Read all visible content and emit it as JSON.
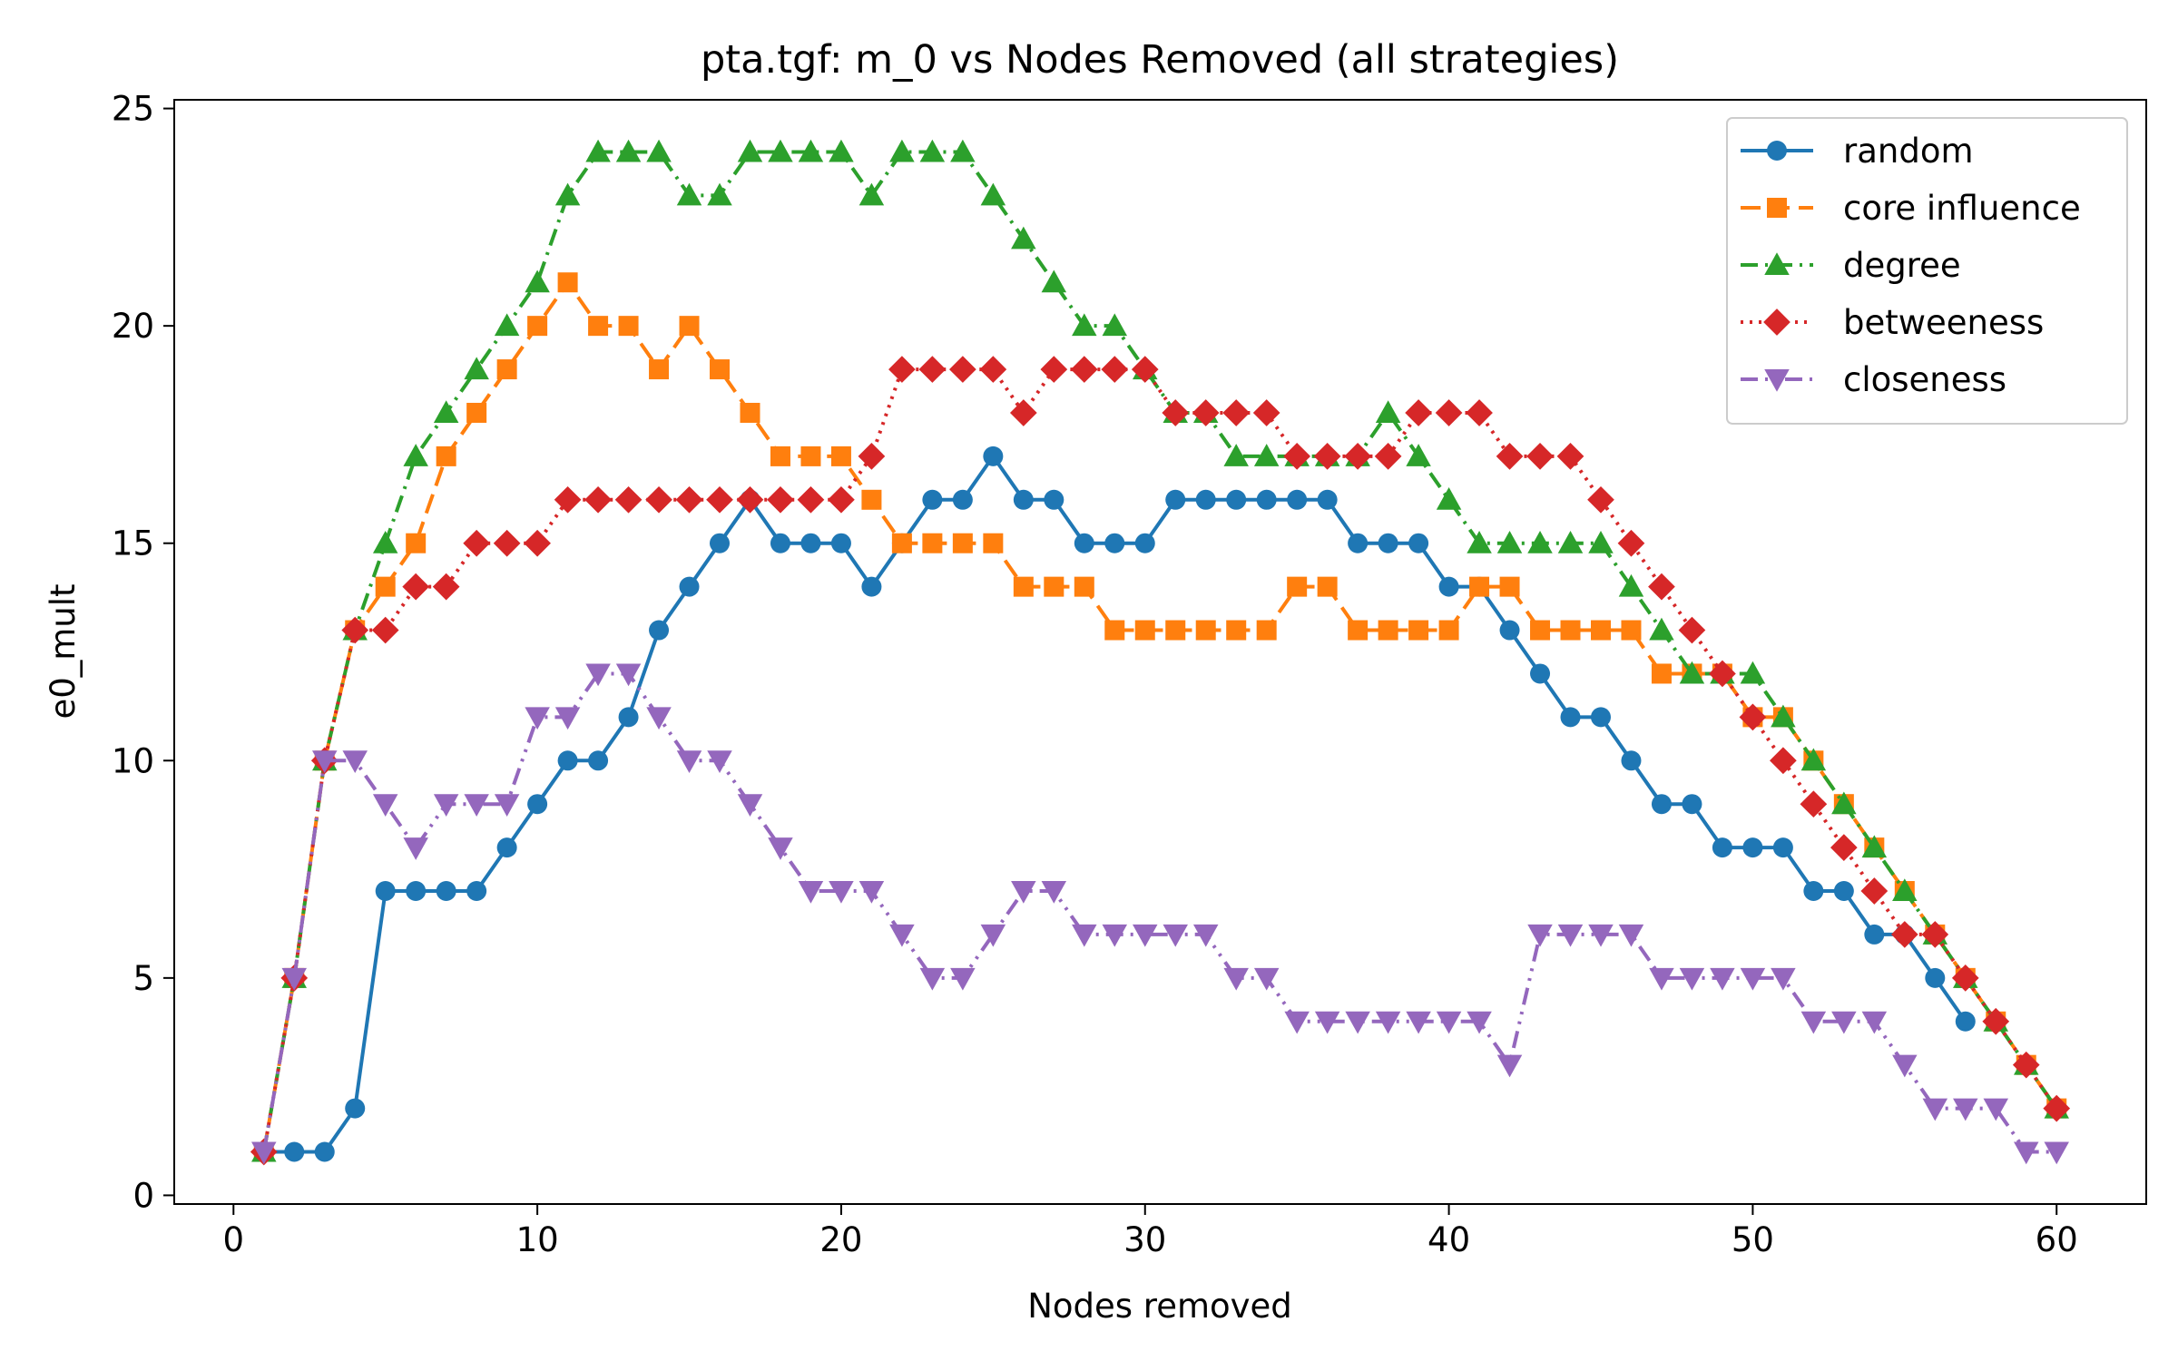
{
  "chart_data": {
    "type": "line",
    "title": "pta.tgf: m_0 vs Nodes Removed (all strategies)",
    "xlabel": "Nodes removed",
    "ylabel": "e0_mult",
    "xlim": [
      -1.95,
      62.95
    ],
    "ylim": [
      -0.2,
      25.2
    ],
    "xticks": [
      0,
      10,
      20,
      30,
      40,
      50,
      60
    ],
    "yticks": [
      0,
      5,
      10,
      15,
      20,
      25
    ],
    "grid": false,
    "legend_position": "top-right",
    "series": [
      {
        "name": "random",
        "color": "#1f77b4",
        "marker": "circle",
        "linestyle": "solid",
        "x": [
          1,
          2,
          3,
          4,
          5,
          6,
          7,
          8,
          9,
          10,
          11,
          12,
          13,
          14,
          15,
          16,
          17,
          18,
          19,
          20,
          21,
          22,
          23,
          24,
          25,
          26,
          27,
          28,
          29,
          30,
          31,
          32,
          33,
          34,
          35,
          36,
          37,
          38,
          39,
          40,
          41,
          42,
          43,
          44,
          45,
          46,
          47,
          48,
          49,
          50,
          51,
          52,
          53,
          54,
          55,
          56,
          57
        ],
        "y": [
          1,
          1,
          1,
          2,
          7,
          7,
          7,
          7,
          8,
          9,
          10,
          10,
          11,
          13,
          14,
          15,
          16,
          15,
          15,
          15,
          14,
          15,
          16,
          16,
          17,
          16,
          16,
          15,
          15,
          15,
          16,
          16,
          16,
          16,
          16,
          16,
          15,
          15,
          15,
          14,
          14,
          13,
          12,
          11,
          11,
          10,
          9,
          9,
          8,
          8,
          8,
          7,
          7,
          6,
          6,
          5,
          4
        ]
      },
      {
        "name": "core influence",
        "color": "#ff7f0e",
        "marker": "square",
        "linestyle": "dashed",
        "x": [
          1,
          2,
          3,
          4,
          5,
          6,
          7,
          8,
          9,
          10,
          11,
          12,
          13,
          14,
          15,
          16,
          17,
          18,
          19,
          20,
          21,
          22,
          23,
          24,
          25,
          26,
          27,
          28,
          29,
          30,
          31,
          32,
          33,
          34,
          35,
          36,
          37,
          38,
          39,
          40,
          41,
          42,
          43,
          44,
          45,
          46,
          47,
          48,
          49,
          50,
          51,
          52,
          53,
          54,
          55,
          56,
          57,
          58,
          59,
          60
        ],
        "y": [
          1,
          5,
          10,
          13,
          14,
          15,
          17,
          18,
          19,
          20,
          21,
          20,
          20,
          19,
          20,
          19,
          18,
          17,
          17,
          17,
          16,
          15,
          15,
          15,
          15,
          14,
          14,
          14,
          13,
          13,
          13,
          13,
          13,
          13,
          14,
          14,
          13,
          13,
          13,
          13,
          14,
          14,
          13,
          13,
          13,
          13,
          12,
          12,
          12,
          11,
          11,
          10,
          9,
          8,
          7,
          6,
          5,
          4,
          3,
          2
        ]
      },
      {
        "name": "degree",
        "color": "#2ca02c",
        "marker": "triangle-up",
        "linestyle": "dashdot",
        "x": [
          1,
          2,
          3,
          4,
          5,
          6,
          7,
          8,
          9,
          10,
          11,
          12,
          13,
          14,
          15,
          16,
          17,
          18,
          19,
          20,
          21,
          22,
          23,
          24,
          25,
          26,
          27,
          28,
          29,
          30,
          31,
          32,
          33,
          34,
          35,
          36,
          37,
          38,
          39,
          40,
          41,
          42,
          43,
          44,
          45,
          46,
          47,
          48,
          49,
          50,
          51,
          52,
          53,
          54,
          55,
          56,
          57,
          58,
          59,
          60
        ],
        "y": [
          1,
          5,
          10,
          13,
          15,
          17,
          18,
          19,
          20,
          21,
          23,
          24,
          24,
          24,
          23,
          23,
          24,
          24,
          24,
          24,
          23,
          24,
          24,
          24,
          23,
          22,
          21,
          20,
          20,
          19,
          18,
          18,
          17,
          17,
          17,
          17,
          17,
          18,
          17,
          16,
          15,
          15,
          15,
          15,
          15,
          14,
          13,
          12,
          12,
          12,
          11,
          10,
          9,
          8,
          7,
          6,
          5,
          4,
          3,
          2
        ]
      },
      {
        "name": "betweeness",
        "color": "#d62728",
        "marker": "diamond",
        "linestyle": "dotted",
        "x": [
          1,
          2,
          3,
          4,
          5,
          6,
          7,
          8,
          9,
          10,
          11,
          12,
          13,
          14,
          15,
          16,
          17,
          18,
          19,
          20,
          21,
          22,
          23,
          24,
          25,
          26,
          27,
          28,
          29,
          30,
          31,
          32,
          33,
          34,
          35,
          36,
          37,
          38,
          39,
          40,
          41,
          42,
          43,
          44,
          45,
          46,
          47,
          48,
          49,
          50,
          51,
          52,
          53,
          54,
          55,
          56,
          57,
          58,
          59,
          60
        ],
        "y": [
          1,
          5,
          10,
          13,
          13,
          14,
          14,
          15,
          15,
          15,
          16,
          16,
          16,
          16,
          16,
          16,
          16,
          16,
          16,
          16,
          17,
          19,
          19,
          19,
          19,
          18,
          19,
          19,
          19,
          19,
          18,
          18,
          18,
          18,
          17,
          17,
          17,
          17,
          18,
          18,
          18,
          17,
          17,
          17,
          16,
          15,
          14,
          13,
          12,
          11,
          10,
          9,
          8,
          7,
          6,
          6,
          5,
          4,
          3,
          2
        ]
      },
      {
        "name": "closeness",
        "color": "#9467bd",
        "marker": "triangle-down",
        "linestyle": "dashdotdot",
        "x": [
          1,
          2,
          3,
          4,
          5,
          6,
          7,
          8,
          9,
          10,
          11,
          12,
          13,
          14,
          15,
          16,
          17,
          18,
          19,
          20,
          21,
          22,
          23,
          24,
          25,
          26,
          27,
          28,
          29,
          30,
          31,
          32,
          33,
          34,
          35,
          36,
          37,
          38,
          39,
          40,
          41,
          42,
          43,
          44,
          45,
          46,
          47,
          48,
          49,
          50,
          51,
          52,
          53,
          54,
          55,
          56,
          57,
          58,
          59,
          60
        ],
        "y": [
          1,
          5,
          10,
          10,
          9,
          8,
          9,
          9,
          9,
          11,
          11,
          12,
          12,
          11,
          10,
          10,
          9,
          8,
          7,
          7,
          7,
          6,
          5,
          5,
          6,
          7,
          7,
          6,
          6,
          6,
          6,
          6,
          5,
          5,
          4,
          4,
          4,
          4,
          4,
          4,
          4,
          3,
          6,
          6,
          6,
          6,
          5,
          5,
          5,
          5,
          5,
          4,
          4,
          4,
          3,
          2,
          2,
          2,
          1,
          1
        ]
      }
    ]
  }
}
